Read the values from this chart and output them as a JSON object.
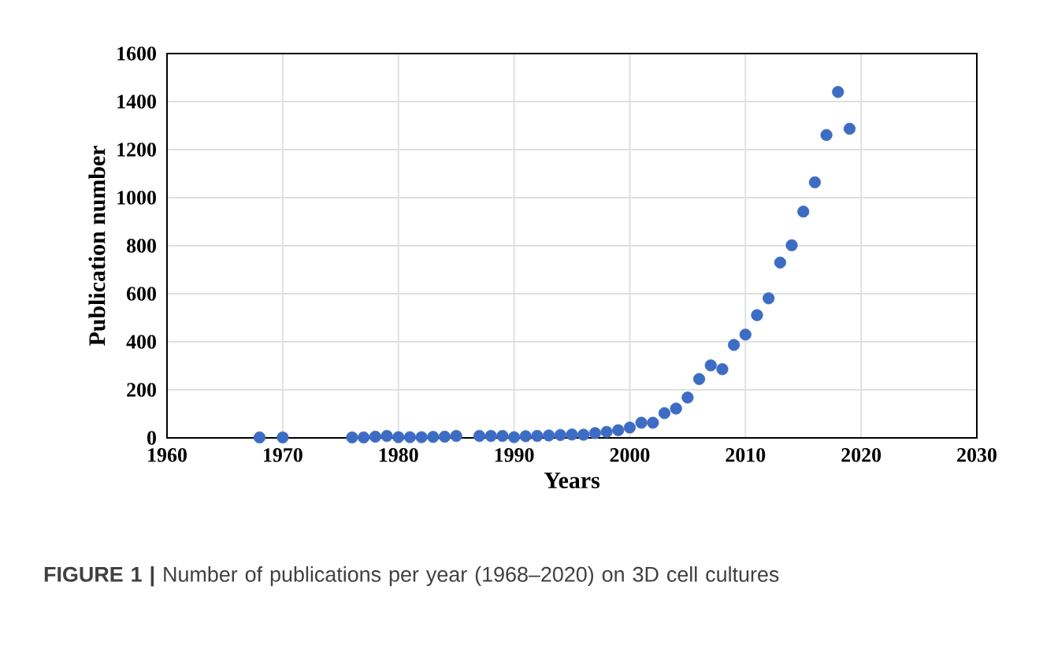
{
  "chart_data": {
    "type": "scatter",
    "xlabel": "Years",
    "ylabel": "Publication number",
    "annotations": [
      "**FIGURE 1 |** Number of publications per year (1968–2020) on 3D cell cultures"
    ],
    "series": [
      {
        "color": "#3d6cc4",
        "x": [
          1968,
          1970,
          1976,
          1977,
          1978,
          1979,
          1980,
          1981,
          1982,
          1983,
          1984,
          1985,
          1987,
          1988,
          1989,
          1990,
          1991,
          1992,
          1993,
          1994,
          1995,
          1996,
          1997,
          1998,
          1999,
          2000,
          2001,
          2002,
          2003,
          2004,
          2005,
          2006,
          2007,
          2008,
          2009,
          2010,
          2011,
          2012,
          2013,
          2014,
          2015,
          2016,
          2017,
          2018,
          2019
        ],
        "values": [
          2,
          2,
          2,
          2,
          5,
          8,
          3,
          3,
          3,
          4,
          5,
          8,
          8,
          8,
          8,
          3,
          7,
          8,
          10,
          12,
          14,
          13,
          20,
          25,
          32,
          43,
          63,
          63,
          103,
          122,
          168,
          245,
          302,
          286,
          387,
          430,
          511,
          581,
          730,
          802,
          942,
          1064,
          1261,
          1440,
          1287
        ]
      }
    ],
    "xlim": [
      1960,
      2030
    ],
    "xticks": [
      1960,
      1970,
      1980,
      1990,
      2000,
      2010,
      2020,
      2030
    ],
    "ylim": [
      0,
      1600
    ],
    "yticks": [
      0,
      200,
      400,
      600,
      800,
      1000,
      1200,
      1400,
      1600
    ],
    "grid": true,
    "marker": "circle"
  }
}
